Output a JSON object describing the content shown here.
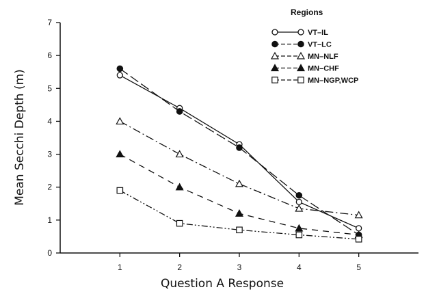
{
  "chart_data": {
    "type": "line",
    "title": "",
    "xlabel": "Question A Response",
    "ylabel": "Mean Secchi Depth (m)",
    "x": [
      1,
      2,
      3,
      4,
      5
    ],
    "x_ticks": [
      "1",
      "2",
      "3",
      "4",
      "5"
    ],
    "y_ticks": [
      "0",
      "1",
      "2",
      "3",
      "4",
      "5",
      "6",
      "7"
    ],
    "xlim": [
      0,
      6
    ],
    "ylim": [
      0,
      7
    ],
    "grid": false,
    "legend_title": "Regions",
    "legend_position": "top-right",
    "series": [
      {
        "name": "VT–IL",
        "values": [
          5.4,
          4.4,
          3.3,
          1.55,
          0.75
        ],
        "marker": "open-circle",
        "line_style": "solid",
        "color": "#111111"
      },
      {
        "name": "VT–LC",
        "values": [
          5.6,
          4.3,
          3.2,
          1.75,
          0.55
        ],
        "marker": "filled-circle",
        "line_style": "long-dash",
        "color": "#111111"
      },
      {
        "name": "MN–NLF",
        "values": [
          4.0,
          3.0,
          2.1,
          1.35,
          1.15
        ],
        "marker": "open-triangle",
        "line_style": "dash-dot",
        "color": "#111111"
      },
      {
        "name": "MN–CHF",
        "values": [
          3.0,
          2.0,
          1.2,
          0.75,
          0.55
        ],
        "marker": "filled-triangle",
        "line_style": "dashed",
        "color": "#111111"
      },
      {
        "name": "MN–NGP,WCP",
        "values": [
          1.9,
          0.9,
          0.7,
          0.55,
          0.42
        ],
        "marker": "open-square",
        "line_style": "dash-dot-dot",
        "color": "#111111"
      }
    ]
  }
}
